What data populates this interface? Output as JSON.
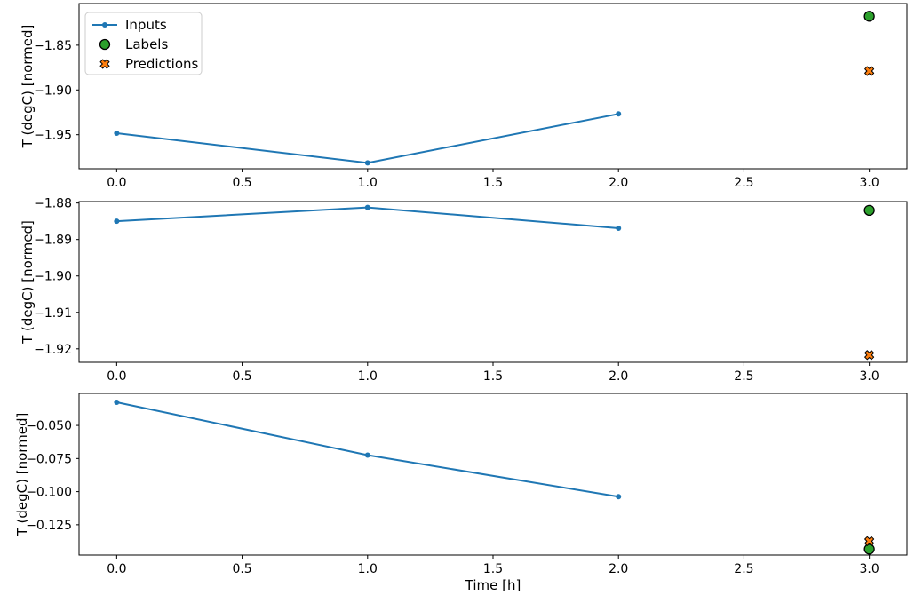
{
  "colors": {
    "inputs": "#1f77b4",
    "labels": "#2ca02c",
    "predictions": "#ff7f0e",
    "marker_edge": "#000000",
    "axis": "#000000",
    "legend_border": "#cccccc",
    "background": "#ffffff"
  },
  "legend": {
    "position": "upper left",
    "entries": [
      {
        "label": "Inputs",
        "marker": "line-dot"
      },
      {
        "label": "Labels",
        "marker": "circle"
      },
      {
        "label": "Predictions",
        "marker": "x-cross"
      }
    ]
  },
  "chart_data": [
    {
      "type": "line",
      "title": "",
      "xlabel": "",
      "ylabel": "T (degC) [normed]",
      "x": [
        0,
        1,
        2
      ],
      "series": [
        {
          "name": "Inputs",
          "values": [
            -1.9483,
            -1.9814,
            -1.9268
          ]
        }
      ],
      "labels_point": {
        "x": 3,
        "y": -1.8177
      },
      "predictions_point": {
        "x": 3,
        "y": -1.8789
      },
      "xlim": [
        -0.15,
        3.15
      ],
      "ylim": [
        -1.988,
        -1.8035
      ],
      "xtick_values": [
        0,
        0.5,
        1,
        1.5,
        2,
        2.5,
        3
      ],
      "xtick_labels": [
        "0.0",
        "0.5",
        "1.0",
        "1.5",
        "2.0",
        "2.5",
        "3.0"
      ],
      "ytick_values": [
        -1.85,
        -1.9,
        -1.95
      ],
      "ytick_labels": [
        "−1.85",
        "−1.90",
        "−1.95"
      ],
      "grid": false,
      "legend_visible": true
    },
    {
      "type": "line",
      "title": "",
      "xlabel": "",
      "ylabel": "T (degC) [normed]",
      "x": [
        0,
        1,
        2
      ],
      "series": [
        {
          "name": "Inputs",
          "values": [
            -1.885,
            -1.8812,
            -1.8869
          ]
        }
      ],
      "labels_point": {
        "x": 3,
        "y": -1.882
      },
      "predictions_point": {
        "x": 3,
        "y": -1.9217
      },
      "xlim": [
        -0.15,
        3.15
      ],
      "ylim": [
        -1.9237,
        -1.8796
      ],
      "xtick_values": [
        0,
        0.5,
        1,
        1.5,
        2,
        2.5,
        3
      ],
      "xtick_labels": [
        "0.0",
        "0.5",
        "1.0",
        "1.5",
        "2.0",
        "2.5",
        "3.0"
      ],
      "ytick_values": [
        -1.88,
        -1.89,
        -1.9,
        -1.91,
        -1.92
      ],
      "ytick_labels": [
        "−1.88",
        "−1.89",
        "−1.90",
        "−1.91",
        "−1.92"
      ],
      "grid": false,
      "legend_visible": false
    },
    {
      "type": "line",
      "title": "",
      "xlabel": "Time [h]",
      "ylabel": "T (degC) [normed]",
      "x": [
        0,
        1,
        2
      ],
      "series": [
        {
          "name": "Inputs",
          "values": [
            -0.0325,
            -0.0724,
            -0.1038
          ]
        }
      ],
      "labels_point": {
        "x": 3,
        "y": -0.1434
      },
      "predictions_point": {
        "x": 3,
        "y": -0.1374
      },
      "xlim": [
        -0.15,
        3.15
      ],
      "ylim": [
        -0.1479,
        -0.0258
      ],
      "xtick_values": [
        0,
        0.5,
        1,
        1.5,
        2,
        2.5,
        3
      ],
      "xtick_labels": [
        "0.0",
        "0.5",
        "1.0",
        "1.5",
        "2.0",
        "2.5",
        "3.0"
      ],
      "ytick_values": [
        -0.05,
        -0.075,
        -0.1,
        -0.125
      ],
      "ytick_labels": [
        "−0.050",
        "−0.075",
        "−0.100",
        "−0.125"
      ],
      "grid": false,
      "legend_visible": false
    }
  ]
}
